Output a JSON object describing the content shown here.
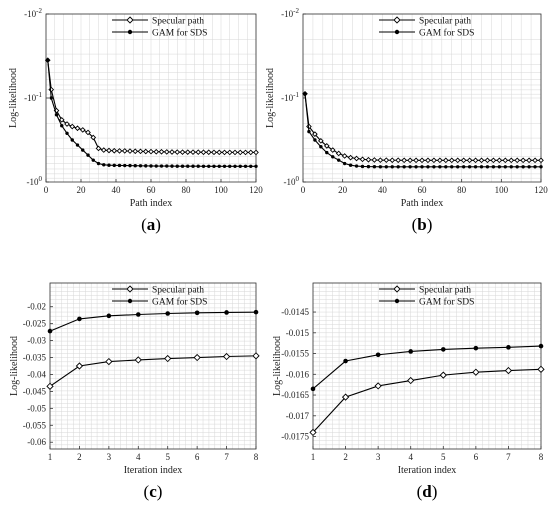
{
  "chart_data": [
    {
      "id": "a",
      "type": "line",
      "panel_label": "a",
      "xlabel": "Path index",
      "ylabel": "Log-likelihood",
      "xlim": [
        0,
        120
      ],
      "x_ticks": [
        0,
        20,
        40,
        60,
        80,
        100,
        120
      ],
      "y_scale": "log",
      "ylim_display": [
        -2,
        0
      ],
      "y_ticks": [
        -2,
        -1,
        0
      ],
      "y_tick_labels": [
        "-10^{-2}",
        "-10^{-1}",
        "-10^{0}"
      ],
      "grid": true,
      "legend_position": "top-right",
      "series": [
        {
          "name": "Specular path",
          "marker": "diamond",
          "x": [
            1,
            3,
            6,
            9,
            12,
            15,
            18,
            21,
            24,
            27,
            30,
            33,
            36,
            39,
            42,
            45,
            48,
            51,
            54,
            57,
            60,
            63,
            66,
            69,
            72,
            75,
            78,
            81,
            84,
            87,
            90,
            93,
            96,
            99,
            102,
            105,
            108,
            111,
            114,
            117,
            120
          ],
          "y": [
            -1.45,
            -1.1,
            -0.85,
            -0.74,
            -0.69,
            -0.66,
            -0.64,
            -0.62,
            -0.59,
            -0.53,
            -0.4,
            -0.38,
            -0.375,
            -0.372,
            -0.37,
            -0.37,
            -0.368,
            -0.366,
            -0.365,
            -0.363,
            -0.362,
            -0.36,
            -0.36,
            -0.358,
            -0.357,
            -0.356,
            -0.355,
            -0.355,
            -0.355,
            -0.355,
            -0.354,
            -0.354,
            -0.353,
            -0.353,
            -0.352,
            -0.352,
            -0.352,
            -0.352,
            -0.352,
            -0.352,
            -0.352
          ]
        },
        {
          "name": "GAM for SDS",
          "marker": "dot",
          "x": [
            1,
            3,
            6,
            9,
            12,
            15,
            18,
            21,
            24,
            27,
            30,
            33,
            36,
            39,
            42,
            45,
            48,
            51,
            54,
            57,
            60,
            63,
            66,
            69,
            72,
            75,
            78,
            81,
            84,
            87,
            90,
            93,
            96,
            99,
            102,
            105,
            108,
            111,
            114,
            117,
            120
          ],
          "y": [
            -1.45,
            -1.0,
            -0.8,
            -0.67,
            -0.58,
            -0.5,
            -0.44,
            -0.38,
            -0.32,
            -0.26,
            -0.22,
            -0.205,
            -0.2,
            -0.198,
            -0.197,
            -0.196,
            -0.195,
            -0.194,
            -0.193,
            -0.192,
            -0.191,
            -0.19,
            -0.19,
            -0.19,
            -0.189,
            -0.188,
            -0.188,
            -0.188,
            -0.188,
            -0.188,
            -0.187,
            -0.187,
            -0.187,
            -0.187,
            -0.187,
            -0.187,
            -0.187,
            -0.187,
            -0.187,
            -0.187,
            -0.187
          ]
        }
      ]
    },
    {
      "id": "b",
      "type": "line",
      "panel_label": "b",
      "xlabel": "Path index",
      "ylabel": "Log-likelihood",
      "xlim": [
        0,
        120
      ],
      "x_ticks": [
        0,
        20,
        40,
        60,
        80,
        100,
        120
      ],
      "y_scale": "log",
      "ylim_display": [
        -2,
        0
      ],
      "y_ticks": [
        -2,
        -1,
        0
      ],
      "y_tick_labels": [
        "-10^{-2}",
        "-10^{-1}",
        "-10^{0}"
      ],
      "grid": true,
      "legend_position": "top-right",
      "series": [
        {
          "name": "Specular path",
          "marker": "diamond",
          "x": [
            1,
            3,
            6,
            9,
            12,
            15,
            18,
            21,
            24,
            27,
            30,
            33,
            36,
            39,
            42,
            45,
            48,
            51,
            54,
            57,
            60,
            63,
            66,
            69,
            72,
            75,
            78,
            81,
            84,
            87,
            90,
            93,
            96,
            99,
            102,
            105,
            108,
            111,
            114,
            117,
            120
          ],
          "y": [
            -1.05,
            -0.66,
            -0.57,
            -0.49,
            -0.43,
            -0.38,
            -0.34,
            -0.31,
            -0.29,
            -0.28,
            -0.27,
            -0.265,
            -0.262,
            -0.26,
            -0.26,
            -0.259,
            -0.259,
            -0.258,
            -0.258,
            -0.258,
            -0.258,
            -0.258,
            -0.258,
            -0.258,
            -0.258,
            -0.258,
            -0.258,
            -0.258,
            -0.258,
            -0.258,
            -0.258,
            -0.258,
            -0.258,
            -0.258,
            -0.258,
            -0.258,
            -0.258,
            -0.258,
            -0.258,
            -0.258,
            -0.258
          ]
        },
        {
          "name": "GAM for SDS",
          "marker": "dot",
          "x": [
            1,
            3,
            6,
            9,
            12,
            15,
            18,
            21,
            24,
            27,
            30,
            33,
            36,
            39,
            42,
            45,
            48,
            51,
            54,
            57,
            60,
            63,
            66,
            69,
            72,
            75,
            78,
            81,
            84,
            87,
            90,
            93,
            96,
            99,
            102,
            105,
            108,
            111,
            114,
            117,
            120
          ],
          "y": [
            -1.05,
            -0.6,
            -0.5,
            -0.42,
            -0.35,
            -0.3,
            -0.26,
            -0.22,
            -0.2,
            -0.19,
            -0.185,
            -0.183,
            -0.182,
            -0.181,
            -0.181,
            -0.181,
            -0.181,
            -0.181,
            -0.181,
            -0.181,
            -0.181,
            -0.181,
            -0.181,
            -0.181,
            -0.181,
            -0.181,
            -0.181,
            -0.181,
            -0.181,
            -0.181,
            -0.181,
            -0.181,
            -0.181,
            -0.181,
            -0.181,
            -0.181,
            -0.181,
            -0.181,
            -0.181,
            -0.181,
            -0.181
          ]
        }
      ]
    },
    {
      "id": "c",
      "type": "line",
      "panel_label": "c",
      "xlabel": "Iteration index",
      "ylabel": "Log-likelihood",
      "xlim": [
        1,
        8
      ],
      "x_ticks": [
        1,
        2,
        3,
        4,
        5,
        6,
        7,
        8
      ],
      "ylim": [
        -0.062,
        -0.013
      ],
      "y_ticks": [
        -0.02,
        -0.025,
        -0.03,
        -0.035,
        -0.04,
        -0.045,
        -0.05,
        -0.055,
        -0.06
      ],
      "y_tick_labels": [
        "-0.02",
        "-0.025",
        "-0.03",
        "-0.035",
        "-0.04",
        "-0.045",
        "-0.05",
        "-0.055",
        "-0.06"
      ],
      "grid": true,
      "legend_position": "top-right",
      "series": [
        {
          "name": "Specular path",
          "marker": "diamond",
          "x": [
            1,
            2,
            3,
            4,
            5,
            6,
            7,
            8
          ],
          "y": [
            -0.0435,
            -0.0375,
            -0.0362,
            -0.0357,
            -0.0353,
            -0.035,
            -0.0347,
            -0.0345
          ]
        },
        {
          "name": "GAM for SDS",
          "marker": "dot",
          "x": [
            1,
            2,
            3,
            4,
            5,
            6,
            7,
            8
          ],
          "y": [
            -0.0272,
            -0.0236,
            -0.0227,
            -0.0223,
            -0.022,
            -0.0218,
            -0.0217,
            -0.0216
          ]
        }
      ]
    },
    {
      "id": "d",
      "type": "line",
      "panel_label": "d",
      "xlabel": "Iteration index",
      "ylabel": "Log-likelihood",
      "xlim": [
        1,
        8
      ],
      "x_ticks": [
        1,
        2,
        3,
        4,
        5,
        6,
        7,
        8
      ],
      "ylim": [
        -0.0178,
        -0.0138
      ],
      "y_ticks": [
        -0.0145,
        -0.015,
        -0.0155,
        -0.016,
        -0.0165,
        -0.017,
        -0.0175
      ],
      "y_tick_labels": [
        "-0.0145",
        "-0.015",
        "-0.0155",
        "-0.016",
        "-0.0165",
        "-0.017",
        "-0.0175"
      ],
      "grid": true,
      "legend_position": "top-right",
      "series": [
        {
          "name": "Specular path",
          "marker": "diamond",
          "x": [
            1,
            2,
            3,
            4,
            5,
            6,
            7,
            8
          ],
          "y": [
            -0.0174,
            -0.01655,
            -0.01628,
            -0.01615,
            -0.01602,
            -0.01595,
            -0.01591,
            -0.01588
          ]
        },
        {
          "name": "GAM for SDS",
          "marker": "dot",
          "x": [
            1,
            2,
            3,
            4,
            5,
            6,
            7,
            8
          ],
          "y": [
            -0.01635,
            -0.01568,
            -0.01553,
            -0.01545,
            -0.0154,
            -0.01537,
            -0.01535,
            -0.01532
          ]
        }
      ]
    }
  ]
}
